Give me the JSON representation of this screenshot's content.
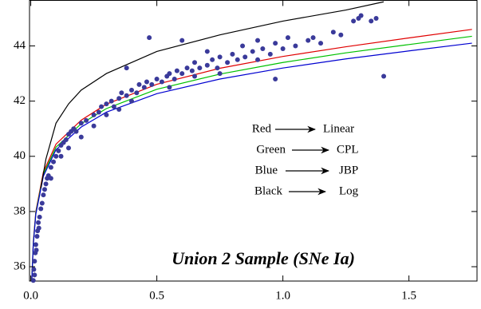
{
  "chart_data": {
    "type": "scatter",
    "title": "Union 2 Sample (SNe Ia)",
    "xlim": [
      -0.005,
      1.77
    ],
    "ylim": [
      35.48,
      45.65
    ],
    "xticks": [
      {
        "value": 0,
        "label": "0.0"
      },
      0.5,
      {
        "value": 1,
        "label": "1.0"
      },
      1.5
    ],
    "yticks": [
      36,
      38,
      40,
      42,
      44
    ],
    "series": [
      {
        "type": "line",
        "color": "#e00000",
        "x": [
          0.004,
          0.01,
          0.02,
          0.05,
          0.1,
          0.2,
          0.3,
          0.5,
          0.75,
          1.0,
          1.25,
          1.5,
          1.75
        ],
        "values": [
          35.5,
          36.9,
          38.0,
          39.43,
          40.44,
          41.31,
          41.89,
          42.61,
          43.19,
          43.62,
          43.97,
          44.29,
          44.6
        ]
      },
      {
        "type": "line",
        "color": "#00c000",
        "x": [
          0.004,
          0.01,
          0.02,
          0.05,
          0.1,
          0.2,
          0.3,
          0.5,
          0.75,
          1.0,
          1.25,
          1.5,
          1.75
        ],
        "values": [
          35.5,
          36.85,
          37.95,
          39.35,
          40.33,
          41.18,
          41.73,
          42.43,
          42.98,
          43.4,
          43.75,
          44.05,
          44.35
        ]
      },
      {
        "type": "line",
        "color": "#0000d0",
        "x": [
          0.004,
          0.01,
          0.02,
          0.05,
          0.1,
          0.2,
          0.3,
          0.5,
          0.75,
          1.0,
          1.25,
          1.5,
          1.75
        ],
        "values": [
          35.5,
          36.8,
          37.9,
          39.28,
          40.24,
          41.06,
          41.6,
          42.27,
          42.8,
          43.2,
          43.53,
          43.82,
          44.1
        ]
      },
      {
        "type": "line",
        "color": "#000000",
        "x": [
          0.04,
          0.06,
          0.1,
          0.15,
          0.2,
          0.3,
          0.5,
          0.75,
          1.0,
          1.25,
          1.4
        ],
        "values": [
          38.85,
          39.9,
          41.2,
          41.9,
          42.4,
          43.0,
          43.8,
          44.4,
          44.9,
          45.3,
          45.6
        ]
      },
      {
        "type": "scatter",
        "color": "#3a3a9a",
        "x": [
          0.01,
          0.012,
          0.015,
          0.015,
          0.018,
          0.02,
          0.022,
          0.025,
          0.027,
          0.03,
          0.032,
          0.035,
          0.04,
          0.045,
          0.05,
          0.055,
          0.06,
          0.065,
          0.07,
          0.08,
          0.09,
          0.1,
          0.11,
          0.12,
          0.13,
          0.14,
          0.15,
          0.16,
          0.17,
          0.18,
          0.2,
          0.22,
          0.25,
          0.27,
          0.28,
          0.3,
          0.32,
          0.33,
          0.35,
          0.36,
          0.38,
          0.38,
          0.4,
          0.42,
          0.43,
          0.45,
          0.46,
          0.48,
          0.5,
          0.52,
          0.54,
          0.55,
          0.57,
          0.58,
          0.6,
          0.6,
          0.62,
          0.64,
          0.65,
          0.67,
          0.7,
          0.72,
          0.74,
          0.75,
          0.78,
          0.8,
          0.82,
          0.84,
          0.85,
          0.88,
          0.9,
          0.92,
          0.95,
          0.97,
          0.97,
          1.0,
          1.02,
          1.05,
          1.1,
          1.12,
          1.15,
          1.2,
          1.23,
          1.28,
          1.3,
          1.31,
          1.35,
          1.37,
          1.4,
          0.47,
          0.2,
          0.25,
          0.15,
          0.12,
          0.08,
          0.3,
          0.4,
          0.35,
          0.55,
          0.7,
          0.65,
          0.75,
          0.9
        ],
        "values": [
          35.5,
          35.9,
          36.2,
          35.7,
          36.5,
          36.8,
          36.6,
          37.1,
          37.3,
          37.6,
          37.4,
          37.8,
          38.1,
          38.3,
          38.6,
          38.8,
          39.0,
          39.2,
          39.3,
          39.6,
          39.8,
          40.0,
          40.2,
          40.4,
          40.5,
          40.6,
          40.8,
          40.9,
          41.0,
          40.9,
          41.2,
          41.3,
          41.5,
          41.6,
          41.8,
          41.9,
          42.0,
          41.8,
          42.1,
          42.3,
          42.2,
          43.2,
          42.4,
          42.3,
          42.6,
          42.5,
          42.7,
          42.6,
          42.8,
          42.7,
          42.9,
          43.0,
          42.8,
          43.1,
          44.2,
          43.0,
          43.2,
          43.1,
          43.4,
          43.2,
          43.3,
          43.5,
          43.2,
          43.6,
          43.4,
          43.7,
          43.5,
          44.0,
          43.6,
          43.8,
          43.5,
          43.9,
          43.7,
          44.1,
          42.8,
          43.9,
          44.3,
          44.0,
          44.2,
          44.3,
          44.1,
          44.5,
          44.4,
          44.9,
          45.0,
          45.1,
          44.9,
          45.0,
          42.9,
          44.3,
          40.7,
          41.1,
          40.3,
          40.0,
          39.2,
          41.5,
          42.0,
          41.7,
          42.5,
          43.8,
          42.9,
          43.0,
          44.2
        ]
      }
    ],
    "annotations": [
      {
        "from": "Red",
        "to": "Linear"
      },
      {
        "from": "Green",
        "to": "CPL"
      },
      {
        "from": "Blue",
        "to": "JBP"
      },
      {
        "from": "Black",
        "to": "Log"
      }
    ]
  }
}
